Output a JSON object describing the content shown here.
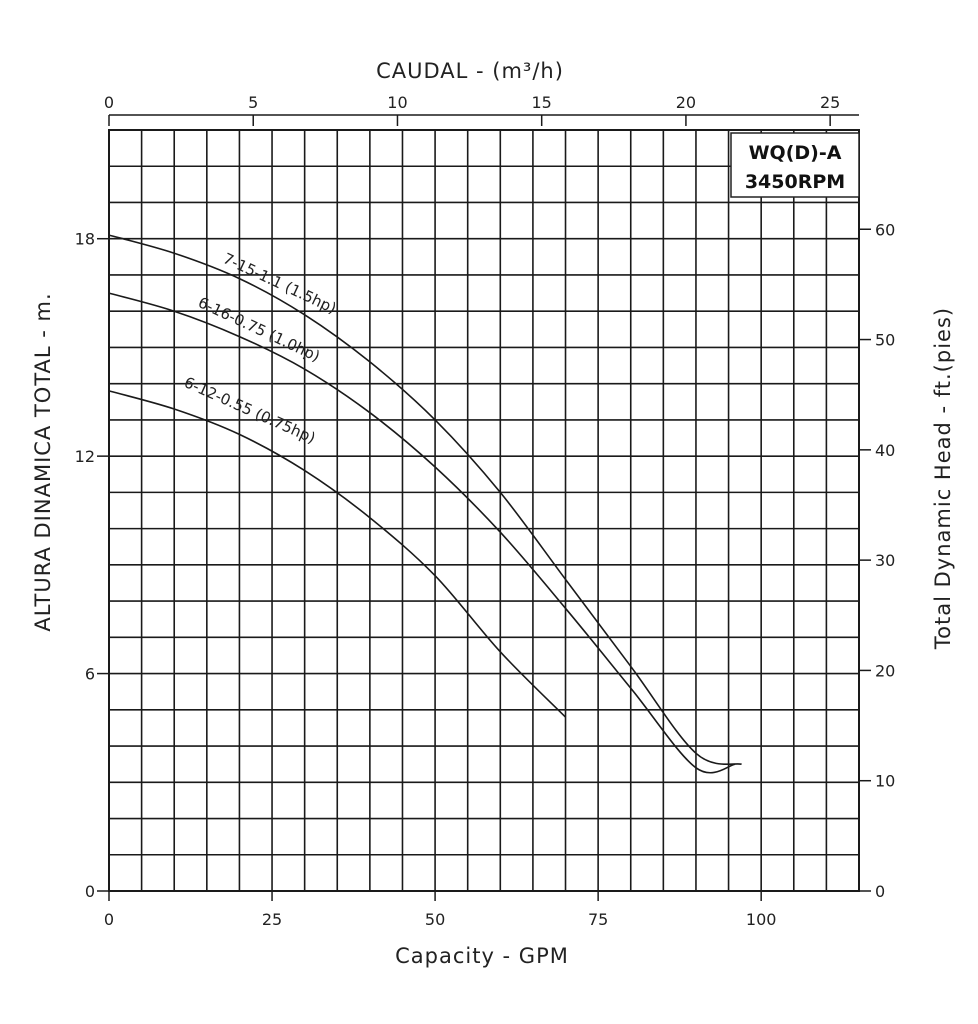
{
  "chart_data": {
    "type": "line",
    "title": "",
    "model_box": {
      "line1": "WQ(D)-A",
      "line2": "3450RPM"
    },
    "xlabel_bottom": "Capacity - GPM",
    "xlabel_top": "CAUDAL - (m³/h)",
    "ylabel_left": "ALTURA DINAMICA TOTAL - m.",
    "ylabel_right": "Total Dynamic Head - ft.(pies)",
    "x_bottom": {
      "range": [
        0,
        115
      ],
      "ticks": [
        0,
        25,
        50,
        75,
        100
      ],
      "tick_labels": [
        "0",
        "25",
        "50",
        "75",
        "100"
      ]
    },
    "x_top": {
      "range": [
        0,
        26
      ],
      "ticks": [
        0,
        5,
        10,
        15,
        20,
        25
      ],
      "tick_labels": [
        "0",
        "5",
        "10",
        "15",
        "20",
        "25"
      ]
    },
    "y_left": {
      "range": [
        0,
        21
      ],
      "ticks": [
        0,
        6,
        12,
        18
      ],
      "tick_labels": [
        "0",
        "6",
        "12",
        "18"
      ]
    },
    "y_right": {
      "range": [
        0,
        69
      ],
      "ticks": [
        0,
        10,
        20,
        30,
        40,
        50,
        60
      ],
      "tick_labels": [
        "0",
        "10",
        "20",
        "30",
        "40",
        "50",
        "60"
      ]
    },
    "grid": true,
    "series": [
      {
        "name": "7-15-1.1 (1.5hp)",
        "x": [
          0,
          10,
          20,
          30,
          40,
          50,
          60,
          70,
          80,
          90,
          97
        ],
        "y": [
          18.1,
          17.6,
          16.9,
          15.9,
          14.6,
          13.0,
          11.0,
          8.6,
          6.2,
          3.8,
          3.5
        ]
      },
      {
        "name": "6-16-0.75 (1.0hp)",
        "x": [
          0,
          10,
          20,
          30,
          40,
          50,
          60,
          70,
          80,
          90,
          96
        ],
        "y": [
          16.5,
          16.0,
          15.3,
          14.4,
          13.2,
          11.7,
          9.9,
          7.8,
          5.6,
          3.4,
          3.5
        ]
      },
      {
        "name": "6-12-0.55 (0.75hp)",
        "x": [
          0,
          10,
          20,
          30,
          40,
          50,
          60,
          70
        ],
        "y": [
          13.8,
          13.3,
          12.6,
          11.6,
          10.3,
          8.7,
          6.6,
          4.8
        ]
      }
    ]
  }
}
